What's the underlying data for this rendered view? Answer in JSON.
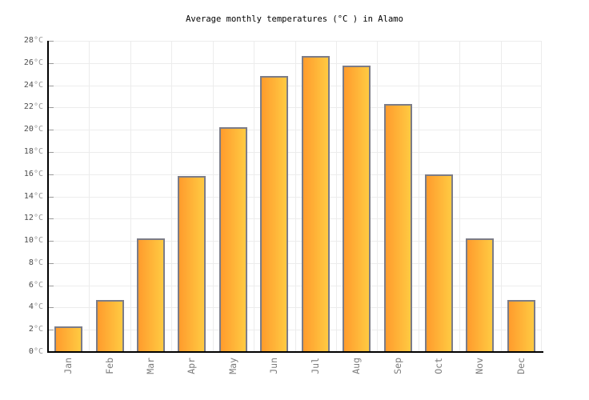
{
  "chart_data": {
    "type": "bar",
    "title": "Average monthly temperatures (°C ) in Alamo",
    "categories": [
      "Jan",
      "Feb",
      "Mar",
      "Apr",
      "May",
      "Jun",
      "Jul",
      "Aug",
      "Sep",
      "Oct",
      "Nov",
      "Dec"
    ],
    "values": [
      2.3,
      4.7,
      10.2,
      15.8,
      20.2,
      24.8,
      26.6,
      25.8,
      22.3,
      16,
      10.2,
      4.7
    ],
    "unit": "°C",
    "xlabel": "",
    "ylabel": "",
    "ylim": [
      0,
      28
    ],
    "ytick_step": 2,
    "grid": true,
    "legend": "none"
  },
  "colors": {
    "background": "#ffffff",
    "title": "#000000",
    "bar_gradient_left": "#ff9c2d",
    "bar_gradient_right": "#ffca42",
    "bar_border": "#7c7c87",
    "grid": "#ececec",
    "axis": "#000000",
    "tick": "#9a9a9a",
    "y_label_value": "#4d4d4d",
    "y_label_unit": "#979797",
    "x_label": "#7d7d7d"
  }
}
